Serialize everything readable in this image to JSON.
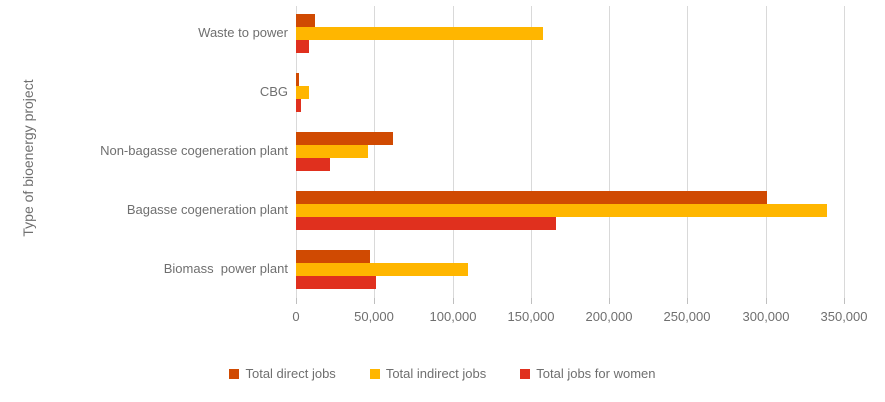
{
  "chart_data": {
    "type": "bar",
    "orientation": "horizontal",
    "title": "",
    "ylabel": "Type of bioenergy project",
    "xlabel": "",
    "categories": [
      "Waste to power",
      "CBG",
      "Non-bagasse cogeneration plant",
      "Bagasse cogeneration plant",
      "Biomass  power plant"
    ],
    "series": [
      {
        "name": "Total direct jobs",
        "color": "#D04A02",
        "values": [
          12000,
          2000,
          62000,
          301000,
          47000
        ]
      },
      {
        "name": "Total indirect jobs",
        "color": "#FFB600",
        "values": [
          158000,
          8000,
          46000,
          339000,
          110000
        ]
      },
      {
        "name": "Total jobs for women",
        "color": "#E0301E",
        "values": [
          8000,
          3000,
          22000,
          166000,
          51000
        ]
      }
    ],
    "x_axis": {
      "min": 0,
      "max": 350000,
      "tick_step": 50000,
      "tick_labels": [
        "0",
        "50,000",
        "100,000",
        "150,000",
        "200,000",
        "250,000",
        "300,000",
        "350,000"
      ]
    },
    "legend_position": "bottom",
    "grid": "vertical",
    "colors": {
      "gridline": "#D9D9D9",
      "tick_mark": "#BFBFBF",
      "text": "#6F6F6F",
      "background": "#FFFFFF"
    }
  }
}
